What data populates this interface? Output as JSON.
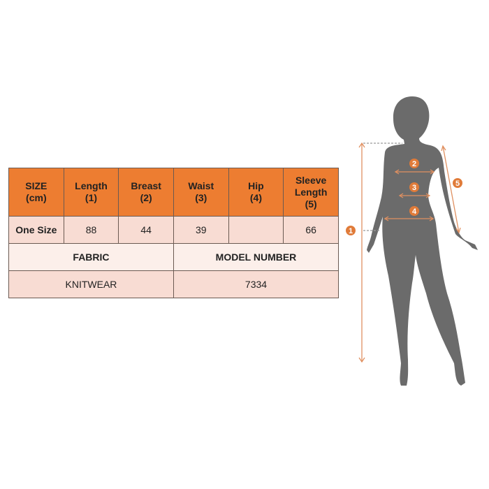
{
  "size_chart": {
    "headers": [
      "SIZE\n(cm)",
      "Length\n(1)",
      "Breast\n(2)",
      "Waist\n(3)",
      "Hip\n(4)",
      "Sleeve\nLength\n(5)"
    ],
    "rows": [
      {
        "size": "One Size",
        "length": "88",
        "breast": "44",
        "waist": "39",
        "hip": "",
        "sleeve_length": "66"
      }
    ],
    "fabric_label": "FABRIC",
    "model_number_label": "MODEL NUMBER",
    "fabric_value": "KNITWEAR",
    "model_number_value": "7334"
  },
  "figure": {
    "badges": [
      "1",
      "2",
      "3",
      "4",
      "5"
    ]
  },
  "colors": {
    "accent": "#ed7d31",
    "silhouette": "#6b6b6b",
    "row_light": "#f8dcd3"
  }
}
